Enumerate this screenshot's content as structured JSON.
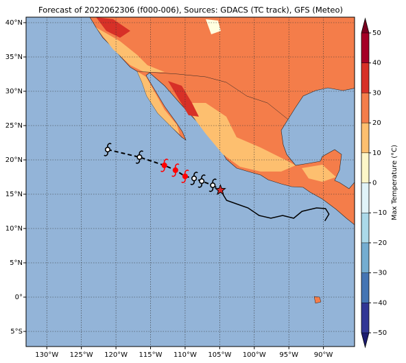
{
  "title": "Forecast of 2022062306 (f000-006), Sources: GDACS (TC track), GFS (Meteo)",
  "map": {
    "xlim": [
      -133,
      -85.5
    ],
    "ylim": [
      -7.2,
      40.8
    ],
    "xticks": [
      {
        "value": -130,
        "label": "130°W"
      },
      {
        "value": -125,
        "label": "125°W"
      },
      {
        "value": -120,
        "label": "120°W"
      },
      {
        "value": -115,
        "label": "115°W"
      },
      {
        "value": -110,
        "label": "110°W"
      },
      {
        "value": -105,
        "label": "105°W"
      },
      {
        "value": -100,
        "label": "100°W"
      },
      {
        "value": -95,
        "label": "95°W"
      },
      {
        "value": -90,
        "label": "90°W"
      }
    ],
    "yticks": [
      {
        "value": -5,
        "label": "5°S"
      },
      {
        "value": 0,
        "label": "0°"
      },
      {
        "value": 5,
        "label": "5°N"
      },
      {
        "value": 10,
        "label": "10°N"
      },
      {
        "value": 15,
        "label": "15°N"
      },
      {
        "value": 20,
        "label": "20°N"
      },
      {
        "value": 25,
        "label": "25°N"
      },
      {
        "value": 30,
        "label": "30°N"
      },
      {
        "value": 35,
        "label": "35°N"
      },
      {
        "value": 40,
        "label": "40°N"
      }
    ],
    "grid": true,
    "forecast_track": {
      "lon": [
        -121.2,
        -116.6,
        -113.0,
        -111.4,
        -110.0,
        -108.7,
        -107.6,
        -106.0
      ],
      "lat": [
        21.5,
        20.4,
        19.2,
        18.5,
        17.6,
        17.3,
        16.9,
        16.3
      ],
      "colors": [
        "#000000",
        "#000000",
        "#ff0000",
        "#ff0000",
        "#ff0000",
        "#000000",
        "#000000",
        "#000000"
      ]
    },
    "current_position": {
      "lon": -104.9,
      "lat": 15.6,
      "color": "#d62728"
    },
    "past_track": {
      "lon": [
        -104.9,
        -104.0,
        -102.6,
        -100.9,
        -99.3,
        -97.6,
        -95.9,
        -94.3,
        -93.1,
        -91.0,
        -89.7,
        -89.2,
        -89.8
      ],
      "lat": [
        15.6,
        14.1,
        13.6,
        13.0,
        11.9,
        11.5,
        11.9,
        11.5,
        12.5,
        13.0,
        12.9,
        12.1,
        11.1
      ]
    }
  },
  "colorbar": {
    "label": "Max Temperature (°C)",
    "lim": [
      -50,
      50
    ],
    "ticks": [
      {
        "value": -50,
        "label": "−50"
      },
      {
        "value": -40,
        "label": "−40"
      },
      {
        "value": -30,
        "label": "−30"
      },
      {
        "value": -20,
        "label": "−20"
      },
      {
        "value": -10,
        "label": "−10"
      },
      0,
      10,
      20,
      30,
      40,
      50
    ],
    "colors": [
      "#313695",
      "#4575b4",
      "#74add1",
      "#abd9e9",
      "#e0f3f8",
      "#fdf6c8",
      "#fdbf6f",
      "#f47d4a",
      "#d73027",
      "#a50026"
    ],
    "under_color": "#1c1c70",
    "over_color": "#7a0020"
  }
}
